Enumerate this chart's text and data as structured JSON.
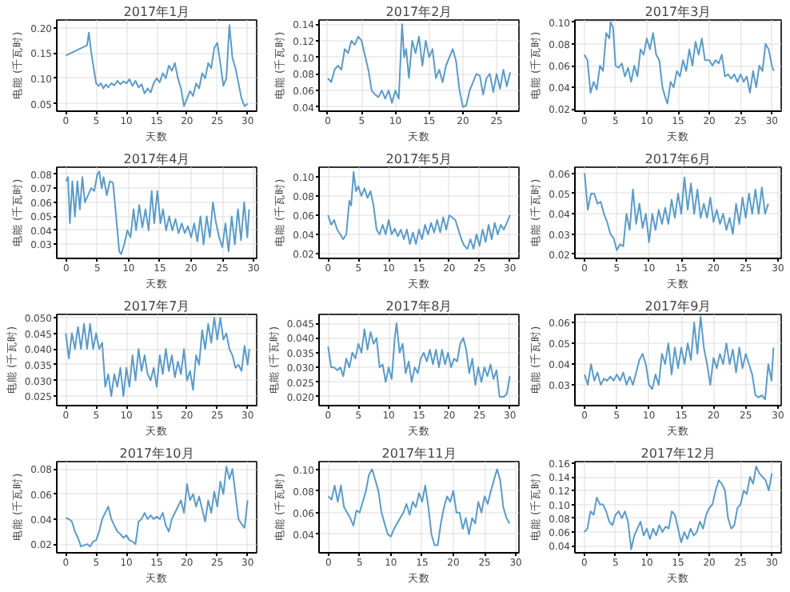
{
  "chart_data": [
    {
      "type": "line",
      "title": "2017年1月",
      "xlabel": "天数",
      "ylabel": "电能 (千瓦时)",
      "color": "#5b9bc8",
      "grid": true,
      "xlim": [
        -1.5,
        31.5
      ],
      "xticks": [
        0,
        5,
        10,
        15,
        20,
        25,
        30
      ],
      "ylim": [
        0.035,
        0.215
      ],
      "yticks": [
        {
          "value": 0.05,
          "label": "0.05"
        },
        {
          "value": 0.1,
          "label": "0.10"
        },
        {
          "value": 0.15,
          "label": "0.15"
        },
        {
          "value": 0.2,
          "label": "0.20"
        }
      ],
      "x": [
        0,
        3.5,
        3.8,
        4.2,
        4.6,
        5,
        5.4,
        5.8,
        6.2,
        6.6,
        7,
        7.5,
        8,
        8.5,
        9,
        9.5,
        10,
        10.5,
        11,
        11.5,
        12,
        12.5,
        13,
        13.5,
        14,
        14.5,
        15,
        15.5,
        16,
        16.5,
        17,
        17.5,
        18,
        18.5,
        19,
        19.5,
        20,
        20.5,
        21,
        21.5,
        22,
        22.5,
        23,
        23.5,
        24,
        24.5,
        25,
        25.5,
        26,
        26.5,
        27,
        27.5,
        28,
        28.5,
        29,
        29.5,
        30
      ],
      "values": [
        0.145,
        0.165,
        0.19,
        0.15,
        0.12,
        0.09,
        0.085,
        0.09,
        0.08,
        0.088,
        0.082,
        0.09,
        0.086,
        0.095,
        0.088,
        0.094,
        0.09,
        0.098,
        0.085,
        0.095,
        0.082,
        0.088,
        0.07,
        0.08,
        0.072,
        0.09,
        0.1,
        0.092,
        0.11,
        0.1,
        0.125,
        0.115,
        0.13,
        0.1,
        0.08,
        0.045,
        0.06,
        0.075,
        0.065,
        0.09,
        0.08,
        0.11,
        0.1,
        0.13,
        0.12,
        0.16,
        0.17,
        0.13,
        0.085,
        0.1,
        0.205,
        0.14,
        0.12,
        0.09,
        0.06,
        0.045,
        0.05
      ]
    },
    {
      "type": "line",
      "title": "2017年2月",
      "xlabel": "天数",
      "ylabel": "电能 (千瓦时)",
      "color": "#5b9bc8",
      "grid": true,
      "xlim": [
        -1.3,
        28.3
      ],
      "xticks": [
        0,
        5,
        10,
        15,
        20,
        25
      ],
      "ylim": [
        0.035,
        0.145
      ],
      "yticks": [
        {
          "value": 0.04,
          "label": "0.04"
        },
        {
          "value": 0.06,
          "label": "0.06"
        },
        {
          "value": 0.08,
          "label": "0.08"
        },
        {
          "value": 0.1,
          "label": "0.10"
        },
        {
          "value": 0.12,
          "label": "0.12"
        },
        {
          "value": 0.14,
          "label": "0.14"
        }
      ],
      "x": [
        0,
        0.5,
        1,
        1.5,
        2,
        2.5,
        3,
        3.5,
        4,
        4.5,
        5,
        6,
        6.5,
        7,
        7.5,
        8,
        8.5,
        9,
        9.5,
        10,
        10.5,
        11,
        11.3,
        11.6,
        12,
        12.5,
        13,
        13.5,
        14,
        14.5,
        15,
        15.5,
        16,
        16.5,
        17,
        17.5,
        18,
        18.5,
        19,
        19.5,
        20,
        20.5,
        21,
        22,
        22.5,
        23,
        23.5,
        24,
        24.5,
        25,
        25.5,
        26,
        26.5,
        27
      ],
      "values": [
        0.075,
        0.07,
        0.085,
        0.09,
        0.085,
        0.11,
        0.105,
        0.12,
        0.115,
        0.125,
        0.12,
        0.085,
        0.06,
        0.055,
        0.052,
        0.06,
        0.05,
        0.06,
        0.045,
        0.06,
        0.05,
        0.14,
        0.1,
        0.11,
        0.075,
        0.12,
        0.105,
        0.125,
        0.09,
        0.12,
        0.1,
        0.11,
        0.075,
        0.085,
        0.07,
        0.09,
        0.1,
        0.11,
        0.095,
        0.06,
        0.04,
        0.042,
        0.06,
        0.08,
        0.078,
        0.055,
        0.075,
        0.08,
        0.058,
        0.08,
        0.062,
        0.085,
        0.065,
        0.082
      ]
    },
    {
      "type": "line",
      "title": "2017年3月",
      "xlabel": "天数",
      "ylabel": "电能 (千瓦时)",
      "color": "#5b9bc8",
      "grid": true,
      "xlim": [
        -1.5,
        31.5
      ],
      "xticks": [
        0,
        5,
        10,
        15,
        20,
        25,
        30
      ],
      "ylim": [
        0.018,
        0.102
      ],
      "yticks": [
        {
          "value": 0.02,
          "label": "0.02"
        },
        {
          "value": 0.04,
          "label": "0.04"
        },
        {
          "value": 0.06,
          "label": "0.06"
        },
        {
          "value": 0.08,
          "label": "0.08"
        },
        {
          "value": 0.1,
          "label": "0.10"
        }
      ],
      "x": [
        0,
        0.5,
        1,
        1.5,
        2,
        2.5,
        3,
        3.5,
        4,
        4.2,
        4.6,
        5,
        5.5,
        6,
        6.5,
        7,
        7.5,
        8,
        8.5,
        9,
        9.5,
        10,
        10.5,
        11,
        11.5,
        12,
        12.5,
        13,
        13.3,
        13.8,
        14.3,
        14.8,
        15.3,
        15.8,
        16.3,
        16.8,
        17.3,
        17.8,
        18.3,
        18.8,
        19.3,
        20,
        20.5,
        21,
        21.5,
        22,
        22.5,
        23,
        23.5,
        24,
        24.5,
        25,
        25.5,
        26,
        26.5,
        27,
        27.5,
        28,
        28.5,
        29,
        29.5,
        30,
        30.3
      ],
      "values": [
        0.07,
        0.065,
        0.035,
        0.045,
        0.038,
        0.06,
        0.055,
        0.09,
        0.085,
        0.1,
        0.095,
        0.06,
        0.058,
        0.062,
        0.05,
        0.058,
        0.045,
        0.06,
        0.05,
        0.075,
        0.07,
        0.085,
        0.075,
        0.09,
        0.07,
        0.065,
        0.04,
        0.03,
        0.025,
        0.045,
        0.04,
        0.055,
        0.05,
        0.065,
        0.055,
        0.075,
        0.06,
        0.082,
        0.07,
        0.085,
        0.065,
        0.065,
        0.06,
        0.065,
        0.062,
        0.07,
        0.05,
        0.052,
        0.048,
        0.052,
        0.045,
        0.052,
        0.045,
        0.05,
        0.035,
        0.055,
        0.04,
        0.06,
        0.055,
        0.08,
        0.075,
        0.06,
        0.055
      ]
    },
    {
      "type": "line",
      "title": "2017年4月",
      "xlabel": "天数",
      "ylabel": "电能 (千瓦时)",
      "color": "#5b9bc8",
      "grid": true,
      "xlim": [
        -1.5,
        30.5
      ],
      "xticks": [
        0,
        5,
        10,
        15,
        20,
        25,
        30
      ],
      "ylim": [
        0.02,
        0.085
      ],
      "yticks": [
        {
          "value": 0.03,
          "label": "0.03"
        },
        {
          "value": 0.04,
          "label": "0.04"
        },
        {
          "value": 0.05,
          "label": "0.05"
        },
        {
          "value": 0.06,
          "label": "0.06"
        },
        {
          "value": 0.07,
          "label": "0.07"
        },
        {
          "value": 0.08,
          "label": "0.08"
        }
      ],
      "x": [
        0,
        0.3,
        0.6,
        1,
        1.4,
        1.8,
        2.2,
        2.6,
        3,
        3.5,
        4,
        4.5,
        5,
        5.3,
        5.7,
        6,
        6.5,
        7,
        7.5,
        8,
        8.5,
        8.8,
        9.3,
        9.8,
        10.3,
        10.8,
        11.2,
        11.7,
        12.2,
        12.7,
        13.2,
        13.7,
        14.1,
        14.6,
        15.1,
        15.5,
        16,
        16.5,
        17,
        17.5,
        18,
        18.5,
        19,
        19.5,
        20,
        20.5,
        21,
        21.5,
        22,
        22.5,
        23,
        23.5,
        24,
        24.5,
        25,
        25.5,
        26,
        26.5,
        27,
        27.5,
        28,
        28.5,
        29,
        29.3
      ],
      "values": [
        0.075,
        0.078,
        0.045,
        0.075,
        0.05,
        0.075,
        0.055,
        0.078,
        0.06,
        0.065,
        0.07,
        0.068,
        0.08,
        0.082,
        0.07,
        0.078,
        0.065,
        0.075,
        0.074,
        0.05,
        0.025,
        0.023,
        0.03,
        0.04,
        0.035,
        0.055,
        0.04,
        0.058,
        0.042,
        0.055,
        0.04,
        0.068,
        0.045,
        0.068,
        0.045,
        0.055,
        0.04,
        0.05,
        0.04,
        0.048,
        0.038,
        0.045,
        0.038,
        0.043,
        0.035,
        0.045,
        0.032,
        0.05,
        0.03,
        0.05,
        0.035,
        0.06,
        0.045,
        0.035,
        0.028,
        0.045,
        0.025,
        0.05,
        0.03,
        0.055,
        0.033,
        0.06,
        0.035,
        0.055
      ]
    },
    {
      "type": "line",
      "title": "2017年5月",
      "xlabel": "天数",
      "ylabel": "电能 (千瓦时)",
      "color": "#5b9bc8",
      "grid": true,
      "xlim": [
        -1.5,
        31.5
      ],
      "xticks": [
        0,
        5,
        10,
        15,
        20,
        25,
        30
      ],
      "ylim": [
        0.015,
        0.11
      ],
      "yticks": [
        {
          "value": 0.02,
          "label": "0.02"
        },
        {
          "value": 0.04,
          "label": "0.04"
        },
        {
          "value": 0.06,
          "label": "0.06"
        },
        {
          "value": 0.08,
          "label": "0.08"
        },
        {
          "value": 0.1,
          "label": "0.10"
        }
      ],
      "x": [
        0,
        0.5,
        1,
        1.5,
        2,
        2.5,
        3,
        3.5,
        3.8,
        4.2,
        4.6,
        5,
        5.5,
        6,
        6.5,
        7,
        7.5,
        8,
        8.5,
        9,
        9.5,
        10,
        10.5,
        11,
        11.5,
        12,
        12.5,
        13,
        13.5,
        14,
        14.5,
        15,
        15.5,
        16,
        16.5,
        17,
        17.5,
        18,
        18.5,
        19,
        19.5,
        20,
        21,
        21.5,
        22,
        22.5,
        23,
        23.5,
        24,
        24.5,
        25,
        25.5,
        26,
        26.5,
        27,
        27.5,
        28,
        28.5,
        29,
        29.5,
        30
      ],
      "values": [
        0.06,
        0.05,
        0.055,
        0.045,
        0.04,
        0.035,
        0.04,
        0.075,
        0.07,
        0.105,
        0.085,
        0.09,
        0.08,
        0.088,
        0.078,
        0.085,
        0.07,
        0.045,
        0.04,
        0.05,
        0.04,
        0.055,
        0.04,
        0.046,
        0.038,
        0.045,
        0.035,
        0.045,
        0.03,
        0.042,
        0.03,
        0.045,
        0.035,
        0.05,
        0.04,
        0.052,
        0.042,
        0.055,
        0.042,
        0.058,
        0.045,
        0.06,
        0.055,
        0.045,
        0.035,
        0.028,
        0.025,
        0.035,
        0.025,
        0.04,
        0.028,
        0.045,
        0.032,
        0.05,
        0.035,
        0.052,
        0.04,
        0.05,
        0.045,
        0.052,
        0.06
      ]
    },
    {
      "type": "line",
      "title": "2017年6月",
      "xlabel": "天数",
      "ylabel": "电能 (千瓦时)",
      "color": "#5b9bc8",
      "grid": true,
      "xlim": [
        -1.5,
        30.5
      ],
      "xticks": [
        0,
        5,
        10,
        15,
        20,
        25,
        30
      ],
      "ylim": [
        0.018,
        0.063
      ],
      "yticks": [
        {
          "value": 0.02,
          "label": "0.02"
        },
        {
          "value": 0.03,
          "label": "0.03"
        },
        {
          "value": 0.04,
          "label": "0.04"
        },
        {
          "value": 0.05,
          "label": "0.05"
        },
        {
          "value": 0.06,
          "label": "0.06"
        }
      ],
      "x": [
        0,
        0.5,
        1,
        1.5,
        2,
        2.5,
        3,
        3.5,
        4,
        4.5,
        5,
        5.5,
        6,
        6.5,
        7,
        7.5,
        8,
        8.5,
        9,
        9.5,
        10,
        10.5,
        11,
        11.5,
        12,
        12.5,
        13,
        13.5,
        14,
        14.5,
        15,
        15.5,
        16,
        16.5,
        17,
        17.5,
        18,
        18.5,
        19,
        19.5,
        20,
        20.5,
        21,
        21.5,
        22,
        22.5,
        23,
        23.5,
        24,
        24.5,
        25,
        25.5,
        26,
        26.5,
        27,
        27.5,
        28,
        28.5
      ],
      "values": [
        0.06,
        0.042,
        0.05,
        0.05,
        0.045,
        0.046,
        0.04,
        0.036,
        0.03,
        0.028,
        0.022,
        0.025,
        0.024,
        0.04,
        0.032,
        0.052,
        0.035,
        0.045,
        0.033,
        0.04,
        0.026,
        0.04,
        0.032,
        0.042,
        0.035,
        0.043,
        0.035,
        0.047,
        0.038,
        0.05,
        0.04,
        0.058,
        0.042,
        0.055,
        0.04,
        0.052,
        0.038,
        0.045,
        0.038,
        0.048,
        0.036,
        0.042,
        0.035,
        0.04,
        0.032,
        0.038,
        0.03,
        0.045,
        0.035,
        0.048,
        0.038,
        0.05,
        0.04,
        0.052,
        0.04,
        0.053,
        0.04,
        0.045
      ]
    },
    {
      "type": "line",
      "title": "2017年7月",
      "xlabel": "天数",
      "ylabel": "电能 (千瓦时)",
      "color": "#5b9bc8",
      "grid": true,
      "xlim": [
        -1.5,
        31.5
      ],
      "xticks": [
        0,
        5,
        10,
        15,
        20,
        25,
        30
      ],
      "ylim": [
        0.022,
        0.051
      ],
      "yticks": [
        {
          "value": 0.025,
          "label": "0.025"
        },
        {
          "value": 0.03,
          "label": "0.030"
        },
        {
          "value": 0.035,
          "label": "0.035"
        },
        {
          "value": 0.04,
          "label": "0.040"
        },
        {
          "value": 0.045,
          "label": "0.045"
        },
        {
          "value": 0.05,
          "label": "0.050"
        }
      ],
      "x": [
        0,
        0.5,
        1,
        1.5,
        2,
        2.5,
        3,
        3.5,
        4,
        4.5,
        5,
        5.5,
        6,
        6.5,
        7,
        7.5,
        8,
        8.5,
        9,
        9.5,
        10,
        10.5,
        11,
        11.5,
        12,
        12.5,
        13,
        13.5,
        14,
        14.5,
        15,
        15.5,
        16,
        16.5,
        17,
        17.5,
        18,
        18.5,
        19,
        19.5,
        20,
        20.5,
        21,
        21.5,
        22,
        22.5,
        23,
        23.5,
        24,
        24.5,
        25,
        25.5,
        26,
        26.5,
        27,
        27.5,
        28,
        28.5,
        29,
        29.5,
        30,
        30.3
      ],
      "values": [
        0.045,
        0.037,
        0.045,
        0.04,
        0.047,
        0.04,
        0.048,
        0.04,
        0.048,
        0.04,
        0.045,
        0.04,
        0.042,
        0.028,
        0.032,
        0.025,
        0.032,
        0.028,
        0.034,
        0.025,
        0.034,
        0.028,
        0.038,
        0.03,
        0.04,
        0.033,
        0.038,
        0.032,
        0.03,
        0.034,
        0.028,
        0.038,
        0.032,
        0.04,
        0.033,
        0.038,
        0.031,
        0.036,
        0.032,
        0.04,
        0.03,
        0.033,
        0.027,
        0.038,
        0.035,
        0.046,
        0.04,
        0.048,
        0.042,
        0.05,
        0.043,
        0.05,
        0.043,
        0.045,
        0.04,
        0.038,
        0.034,
        0.035,
        0.033,
        0.041,
        0.035,
        0.04
      ]
    },
    {
      "type": "line",
      "title": "2017年8月",
      "xlabel": "天数",
      "ylabel": "电能 (千瓦时)",
      "color": "#5b9bc8",
      "grid": true,
      "xlim": [
        -1.5,
        31.5
      ],
      "xticks": [
        0,
        5,
        10,
        15,
        20,
        25,
        30
      ],
      "ylim": [
        0.017,
        0.048
      ],
      "yticks": [
        {
          "value": 0.02,
          "label": "0.020"
        },
        {
          "value": 0.025,
          "label": "0.025"
        },
        {
          "value": 0.03,
          "label": "0.030"
        },
        {
          "value": 0.035,
          "label": "0.035"
        },
        {
          "value": 0.04,
          "label": "0.040"
        },
        {
          "value": 0.045,
          "label": "0.045"
        }
      ],
      "x": [
        0,
        0.5,
        1,
        1.5,
        2,
        2.5,
        3,
        3.5,
        4,
        4.5,
        5,
        5.5,
        6,
        6.5,
        7,
        7.5,
        8,
        8.5,
        9,
        9.5,
        10,
        10.5,
        11,
        11.3,
        11.8,
        12.3,
        12.8,
        13.3,
        13.8,
        14.3,
        14.8,
        15.3,
        15.8,
        16.3,
        16.8,
        17.3,
        17.8,
        18.3,
        18.8,
        19.3,
        19.8,
        20.3,
        20.8,
        21.3,
        21.8,
        22.3,
        22.8,
        23.3,
        23.8,
        24.3,
        24.8,
        25.3,
        25.8,
        26.3,
        26.8,
        27.3,
        27.8,
        28.3,
        29,
        29.5,
        30
      ],
      "values": [
        0.037,
        0.03,
        0.03,
        0.029,
        0.03,
        0.027,
        0.033,
        0.03,
        0.035,
        0.033,
        0.038,
        0.035,
        0.043,
        0.036,
        0.042,
        0.038,
        0.04,
        0.03,
        0.031,
        0.025,
        0.03,
        0.026,
        0.04,
        0.045,
        0.035,
        0.038,
        0.028,
        0.032,
        0.025,
        0.03,
        0.028,
        0.033,
        0.035,
        0.032,
        0.036,
        0.031,
        0.036,
        0.03,
        0.036,
        0.031,
        0.035,
        0.03,
        0.033,
        0.032,
        0.038,
        0.04,
        0.036,
        0.028,
        0.033,
        0.024,
        0.03,
        0.025,
        0.03,
        0.027,
        0.031,
        0.026,
        0.029,
        0.02,
        0.02,
        0.021,
        0.027
      ]
    },
    {
      "type": "line",
      "title": "2017年9月",
      "xlabel": "天数",
      "ylabel": "电能 (千瓦时)",
      "color": "#5b9bc8",
      "grid": true,
      "xlim": [
        -1.5,
        30.5
      ],
      "xticks": [
        0,
        5,
        10,
        15,
        20,
        25,
        30
      ],
      "ylim": [
        0.02,
        0.064
      ],
      "yticks": [
        {
          "value": 0.03,
          "label": "0.03"
        },
        {
          "value": 0.04,
          "label": "0.04"
        },
        {
          "value": 0.05,
          "label": "0.05"
        },
        {
          "value": 0.06,
          "label": "0.06"
        }
      ],
      "x": [
        0,
        0.5,
        1,
        1.5,
        2,
        2.5,
        3,
        3.5,
        4,
        4.5,
        5,
        5.5,
        6,
        6.5,
        7,
        7.5,
        8,
        8.5,
        9,
        9.5,
        10,
        10.5,
        11,
        11.5,
        12,
        12.5,
        13,
        13.5,
        14,
        14.5,
        15,
        15.5,
        16,
        16.5,
        17,
        17.5,
        18,
        18.5,
        19,
        19.5,
        20,
        20.5,
        21,
        21.5,
        22,
        22.5,
        23,
        23.5,
        24,
        24.5,
        25,
        25.5,
        26,
        26.5,
        27,
        27.5,
        28,
        28.5,
        29,
        29.3
      ],
      "values": [
        0.035,
        0.03,
        0.04,
        0.032,
        0.036,
        0.03,
        0.033,
        0.032,
        0.034,
        0.032,
        0.035,
        0.032,
        0.036,
        0.03,
        0.034,
        0.03,
        0.036,
        0.042,
        0.045,
        0.04,
        0.03,
        0.028,
        0.035,
        0.03,
        0.045,
        0.04,
        0.05,
        0.035,
        0.048,
        0.038,
        0.048,
        0.04,
        0.05,
        0.042,
        0.06,
        0.045,
        0.063,
        0.048,
        0.04,
        0.03,
        0.043,
        0.038,
        0.045,
        0.04,
        0.05,
        0.04,
        0.047,
        0.036,
        0.048,
        0.038,
        0.045,
        0.04,
        0.035,
        0.025,
        0.024,
        0.025,
        0.023,
        0.04,
        0.032,
        0.048
      ]
    },
    {
      "type": "line",
      "title": "2017年10月",
      "xlabel": "天数",
      "ylabel": "电能 (千瓦时)",
      "color": "#5b9bc8",
      "grid": true,
      "xlim": [
        -1.5,
        31.5
      ],
      "xticks": [
        0,
        5,
        10,
        15,
        20,
        25,
        30
      ],
      "ylim": [
        0.013,
        0.086
      ],
      "yticks": [
        {
          "value": 0.02,
          "label": "0.02"
        },
        {
          "value": 0.04,
          "label": "0.04"
        },
        {
          "value": 0.06,
          "label": "0.06"
        },
        {
          "value": 0.08,
          "label": "0.08"
        }
      ],
      "x": [
        0,
        0.5,
        1,
        1.5,
        2,
        2.5,
        3,
        3.5,
        4,
        4.5,
        5,
        5.5,
        6,
        6.5,
        7,
        7.5,
        8,
        8.5,
        9,
        9.5,
        10,
        10.5,
        11,
        11.5,
        12,
        12.5,
        13,
        13.5,
        14,
        14.5,
        15,
        15.5,
        16,
        16.5,
        17,
        17.5,
        18,
        18.5,
        19,
        19.5,
        20,
        20.5,
        21,
        21.5,
        22,
        22.5,
        23,
        23.5,
        24,
        24.5,
        25,
        25.5,
        26,
        26.5,
        27,
        27.5,
        28,
        28.5,
        29,
        29.5,
        30
      ],
      "values": [
        0.041,
        0.04,
        0.038,
        0.03,
        0.025,
        0.018,
        0.019,
        0.02,
        0.018,
        0.022,
        0.023,
        0.03,
        0.04,
        0.045,
        0.05,
        0.04,
        0.035,
        0.03,
        0.028,
        0.025,
        0.027,
        0.023,
        0.022,
        0.02,
        0.038,
        0.04,
        0.045,
        0.04,
        0.043,
        0.04,
        0.042,
        0.04,
        0.045,
        0.035,
        0.03,
        0.04,
        0.045,
        0.05,
        0.055,
        0.045,
        0.068,
        0.055,
        0.06,
        0.05,
        0.058,
        0.048,
        0.038,
        0.055,
        0.045,
        0.062,
        0.05,
        0.07,
        0.06,
        0.082,
        0.072,
        0.08,
        0.06,
        0.04,
        0.036,
        0.033,
        0.055
      ]
    },
    {
      "type": "line",
      "title": "2017年11月",
      "xlabel": "天数",
      "ylabel": "电能 (千瓦时)",
      "color": "#5b9bc8",
      "grid": true,
      "xlim": [
        -1.5,
        30.5
      ],
      "xticks": [
        0,
        5,
        10,
        15,
        20,
        25,
        30
      ],
      "ylim": [
        0.023,
        0.107
      ],
      "yticks": [
        {
          "value": 0.04,
          "label": "0.04"
        },
        {
          "value": 0.06,
          "label": "0.06"
        },
        {
          "value": 0.08,
          "label": "0.08"
        },
        {
          "value": 0.1,
          "label": "0.10"
        }
      ],
      "x": [
        0,
        0.5,
        1,
        1.5,
        2,
        2.5,
        3,
        3.5,
        4,
        4.5,
        5,
        5.5,
        6,
        6.5,
        7,
        7.5,
        8,
        8.5,
        9,
        9.5,
        10,
        10.5,
        11,
        11.5,
        12,
        12.5,
        13,
        13.5,
        14,
        14.5,
        15,
        15.5,
        16,
        16.5,
        17,
        17.5,
        18,
        18.5,
        19,
        19.5,
        20,
        20.5,
        21,
        21.5,
        22,
        22.5,
        23,
        23.5,
        24,
        24.5,
        25,
        25.5,
        26,
        26.5,
        27,
        27.5,
        28,
        28.5,
        29
      ],
      "values": [
        0.075,
        0.072,
        0.085,
        0.07,
        0.085,
        0.065,
        0.06,
        0.055,
        0.048,
        0.062,
        0.06,
        0.07,
        0.08,
        0.095,
        0.1,
        0.09,
        0.08,
        0.06,
        0.05,
        0.04,
        0.038,
        0.045,
        0.05,
        0.055,
        0.06,
        0.068,
        0.058,
        0.07,
        0.065,
        0.078,
        0.07,
        0.085,
        0.065,
        0.04,
        0.03,
        0.03,
        0.05,
        0.065,
        0.075,
        0.07,
        0.08,
        0.06,
        0.06,
        0.045,
        0.055,
        0.04,
        0.055,
        0.05,
        0.07,
        0.06,
        0.075,
        0.068,
        0.08,
        0.09,
        0.1,
        0.09,
        0.065,
        0.055,
        0.05
      ]
    },
    {
      "type": "line",
      "title": "2017年12月",
      "xlabel": "天数",
      "ylabel": "电能 (千瓦时)",
      "color": "#5b9bc8",
      "grid": true,
      "xlim": [
        -1.5,
        31.5
      ],
      "xticks": [
        0,
        5,
        10,
        15,
        20,
        25,
        30
      ],
      "ylim": [
        0.03,
        0.162
      ],
      "yticks": [
        {
          "value": 0.04,
          "label": "0.04"
        },
        {
          "value": 0.06,
          "label": "0.06"
        },
        {
          "value": 0.08,
          "label": "0.08"
        },
        {
          "value": 0.1,
          "label": "0.10"
        },
        {
          "value": 0.12,
          "label": "0.12"
        },
        {
          "value": 0.14,
          "label": "0.14"
        },
        {
          "value": 0.16,
          "label": "0.16"
        }
      ],
      "x": [
        0,
        0.5,
        1,
        1.5,
        2,
        2.5,
        3,
        3.5,
        4,
        4.5,
        5,
        5.5,
        6,
        6.5,
        7,
        7.5,
        8,
        8.5,
        9,
        9.5,
        10,
        10.5,
        11,
        11.5,
        12,
        12.5,
        13,
        13.5,
        14,
        14.5,
        15,
        15.5,
        16,
        16.5,
        17,
        17.5,
        18,
        18.5,
        19,
        19.5,
        20,
        20.5,
        21,
        21.5,
        22,
        22.5,
        23,
        23.5,
        24,
        24.5,
        25,
        25.5,
        26,
        26.5,
        27,
        27.5,
        28,
        28.5,
        29,
        29.5,
        30
      ],
      "values": [
        0.06,
        0.065,
        0.09,
        0.085,
        0.11,
        0.1,
        0.1,
        0.09,
        0.075,
        0.07,
        0.085,
        0.09,
        0.08,
        0.09,
        0.075,
        0.035,
        0.055,
        0.065,
        0.075,
        0.055,
        0.065,
        0.05,
        0.065,
        0.055,
        0.07,
        0.06,
        0.068,
        0.065,
        0.09,
        0.085,
        0.065,
        0.045,
        0.06,
        0.05,
        0.065,
        0.055,
        0.06,
        0.075,
        0.065,
        0.085,
        0.095,
        0.1,
        0.12,
        0.135,
        0.13,
        0.12,
        0.08,
        0.065,
        0.07,
        0.095,
        0.1,
        0.12,
        0.115,
        0.14,
        0.13,
        0.155,
        0.145,
        0.14,
        0.135,
        0.12,
        0.145
      ]
    }
  ]
}
